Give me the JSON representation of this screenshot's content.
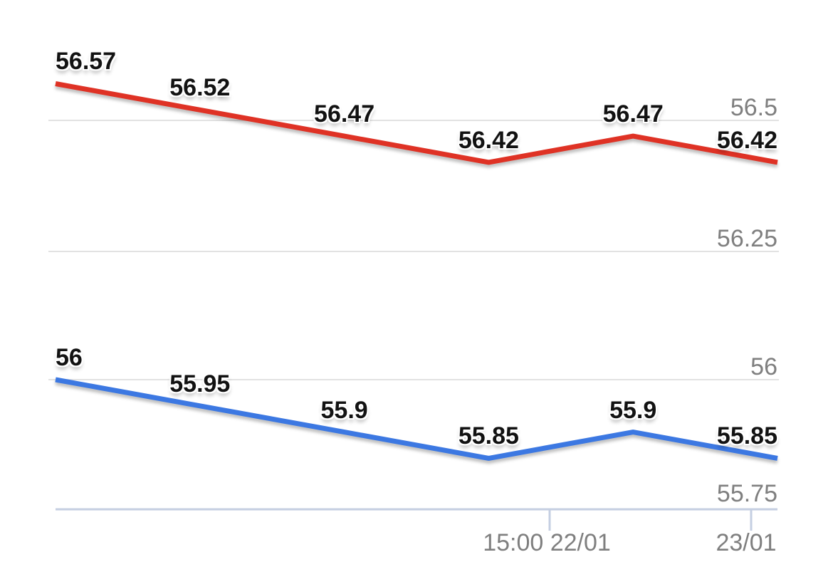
{
  "chart_data": [
    {
      "type": "line",
      "panel": "top",
      "line_color": "#df3225",
      "values": [
        56.57,
        56.52,
        56.47,
        56.42,
        56.47,
        56.42
      ],
      "point_labels": [
        "56.57",
        "56.52",
        "56.47",
        "56.42",
        "56.47",
        "56.42"
      ],
      "y_ticks": [
        {
          "value": 56.5,
          "label": "56.5",
          "gridline": true
        },
        {
          "value": 56.25,
          "label": "56.25",
          "gridline": true
        }
      ],
      "ylim": [
        56.15,
        56.73
      ],
      "grid": "horizontal-only",
      "legend": "none"
    },
    {
      "type": "line",
      "panel": "bottom",
      "line_color": "#3c78e2",
      "values": [
        56,
        55.95,
        55.9,
        55.85,
        55.9,
        55.85
      ],
      "point_labels": [
        "56",
        "55.95",
        "55.9",
        "55.85",
        "55.9",
        "55.85"
      ],
      "y_ticks": [
        {
          "value": 56.0,
          "label": "56",
          "gridline": true
        },
        {
          "value": 55.75,
          "label": "55.75",
          "gridline": false
        }
      ],
      "x_ticks": [
        {
          "label": "15:00 22/01"
        },
        {
          "label": "23/01"
        }
      ],
      "ylim": [
        55.75,
        56.14
      ],
      "grid": "horizontal-only",
      "legend": "none"
    }
  ],
  "styles": {
    "background": "#ffffff",
    "gridline_color": "#e2e2e2",
    "axis_line_color": "#c5cfe2",
    "axis_label_color": "#7f7f7f",
    "point_label_color": "#121212"
  }
}
